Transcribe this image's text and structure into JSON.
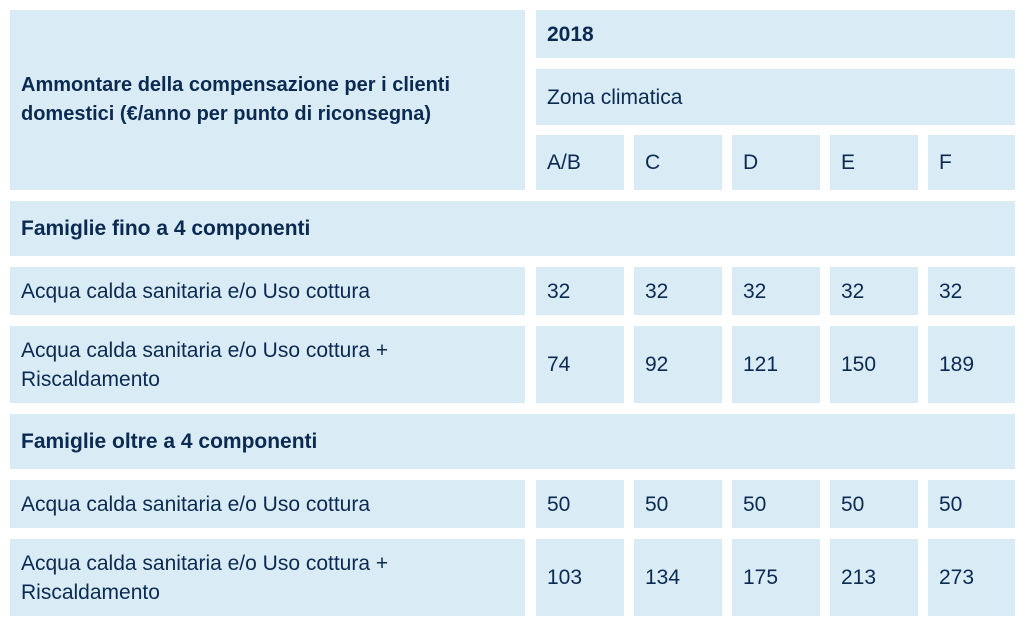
{
  "header": {
    "title": "Ammontare della compensazione per i clienti domestici (€/anno per punto di riconsegna)",
    "year": "2018",
    "zone_label": "Zona climatica",
    "zones": [
      "A/B",
      "C",
      "D",
      "E",
      "F"
    ]
  },
  "sections": [
    {
      "title": "Famiglie fino a 4 componenti",
      "rows": [
        {
          "label": "Acqua calda sanitaria e/o Uso cottura",
          "values": [
            "32",
            "32",
            "32",
            "32",
            "32"
          ]
        },
        {
          "label": "Acqua calda sanitaria e/o Uso cottura + Riscaldamento",
          "values": [
            "74",
            "92",
            "121",
            "150",
            "189"
          ]
        }
      ]
    },
    {
      "title": "Famiglie oltre a 4 componenti",
      "rows": [
        {
          "label": "Acqua calda sanitaria e/o Uso cottura",
          "values": [
            "50",
            "50",
            "50",
            "50",
            "50"
          ]
        },
        {
          "label": "Acqua calda sanitaria e/o Uso cottura + Riscaldamento",
          "values": [
            "103",
            "134",
            "175",
            "213",
            "273"
          ]
        }
      ]
    }
  ]
}
